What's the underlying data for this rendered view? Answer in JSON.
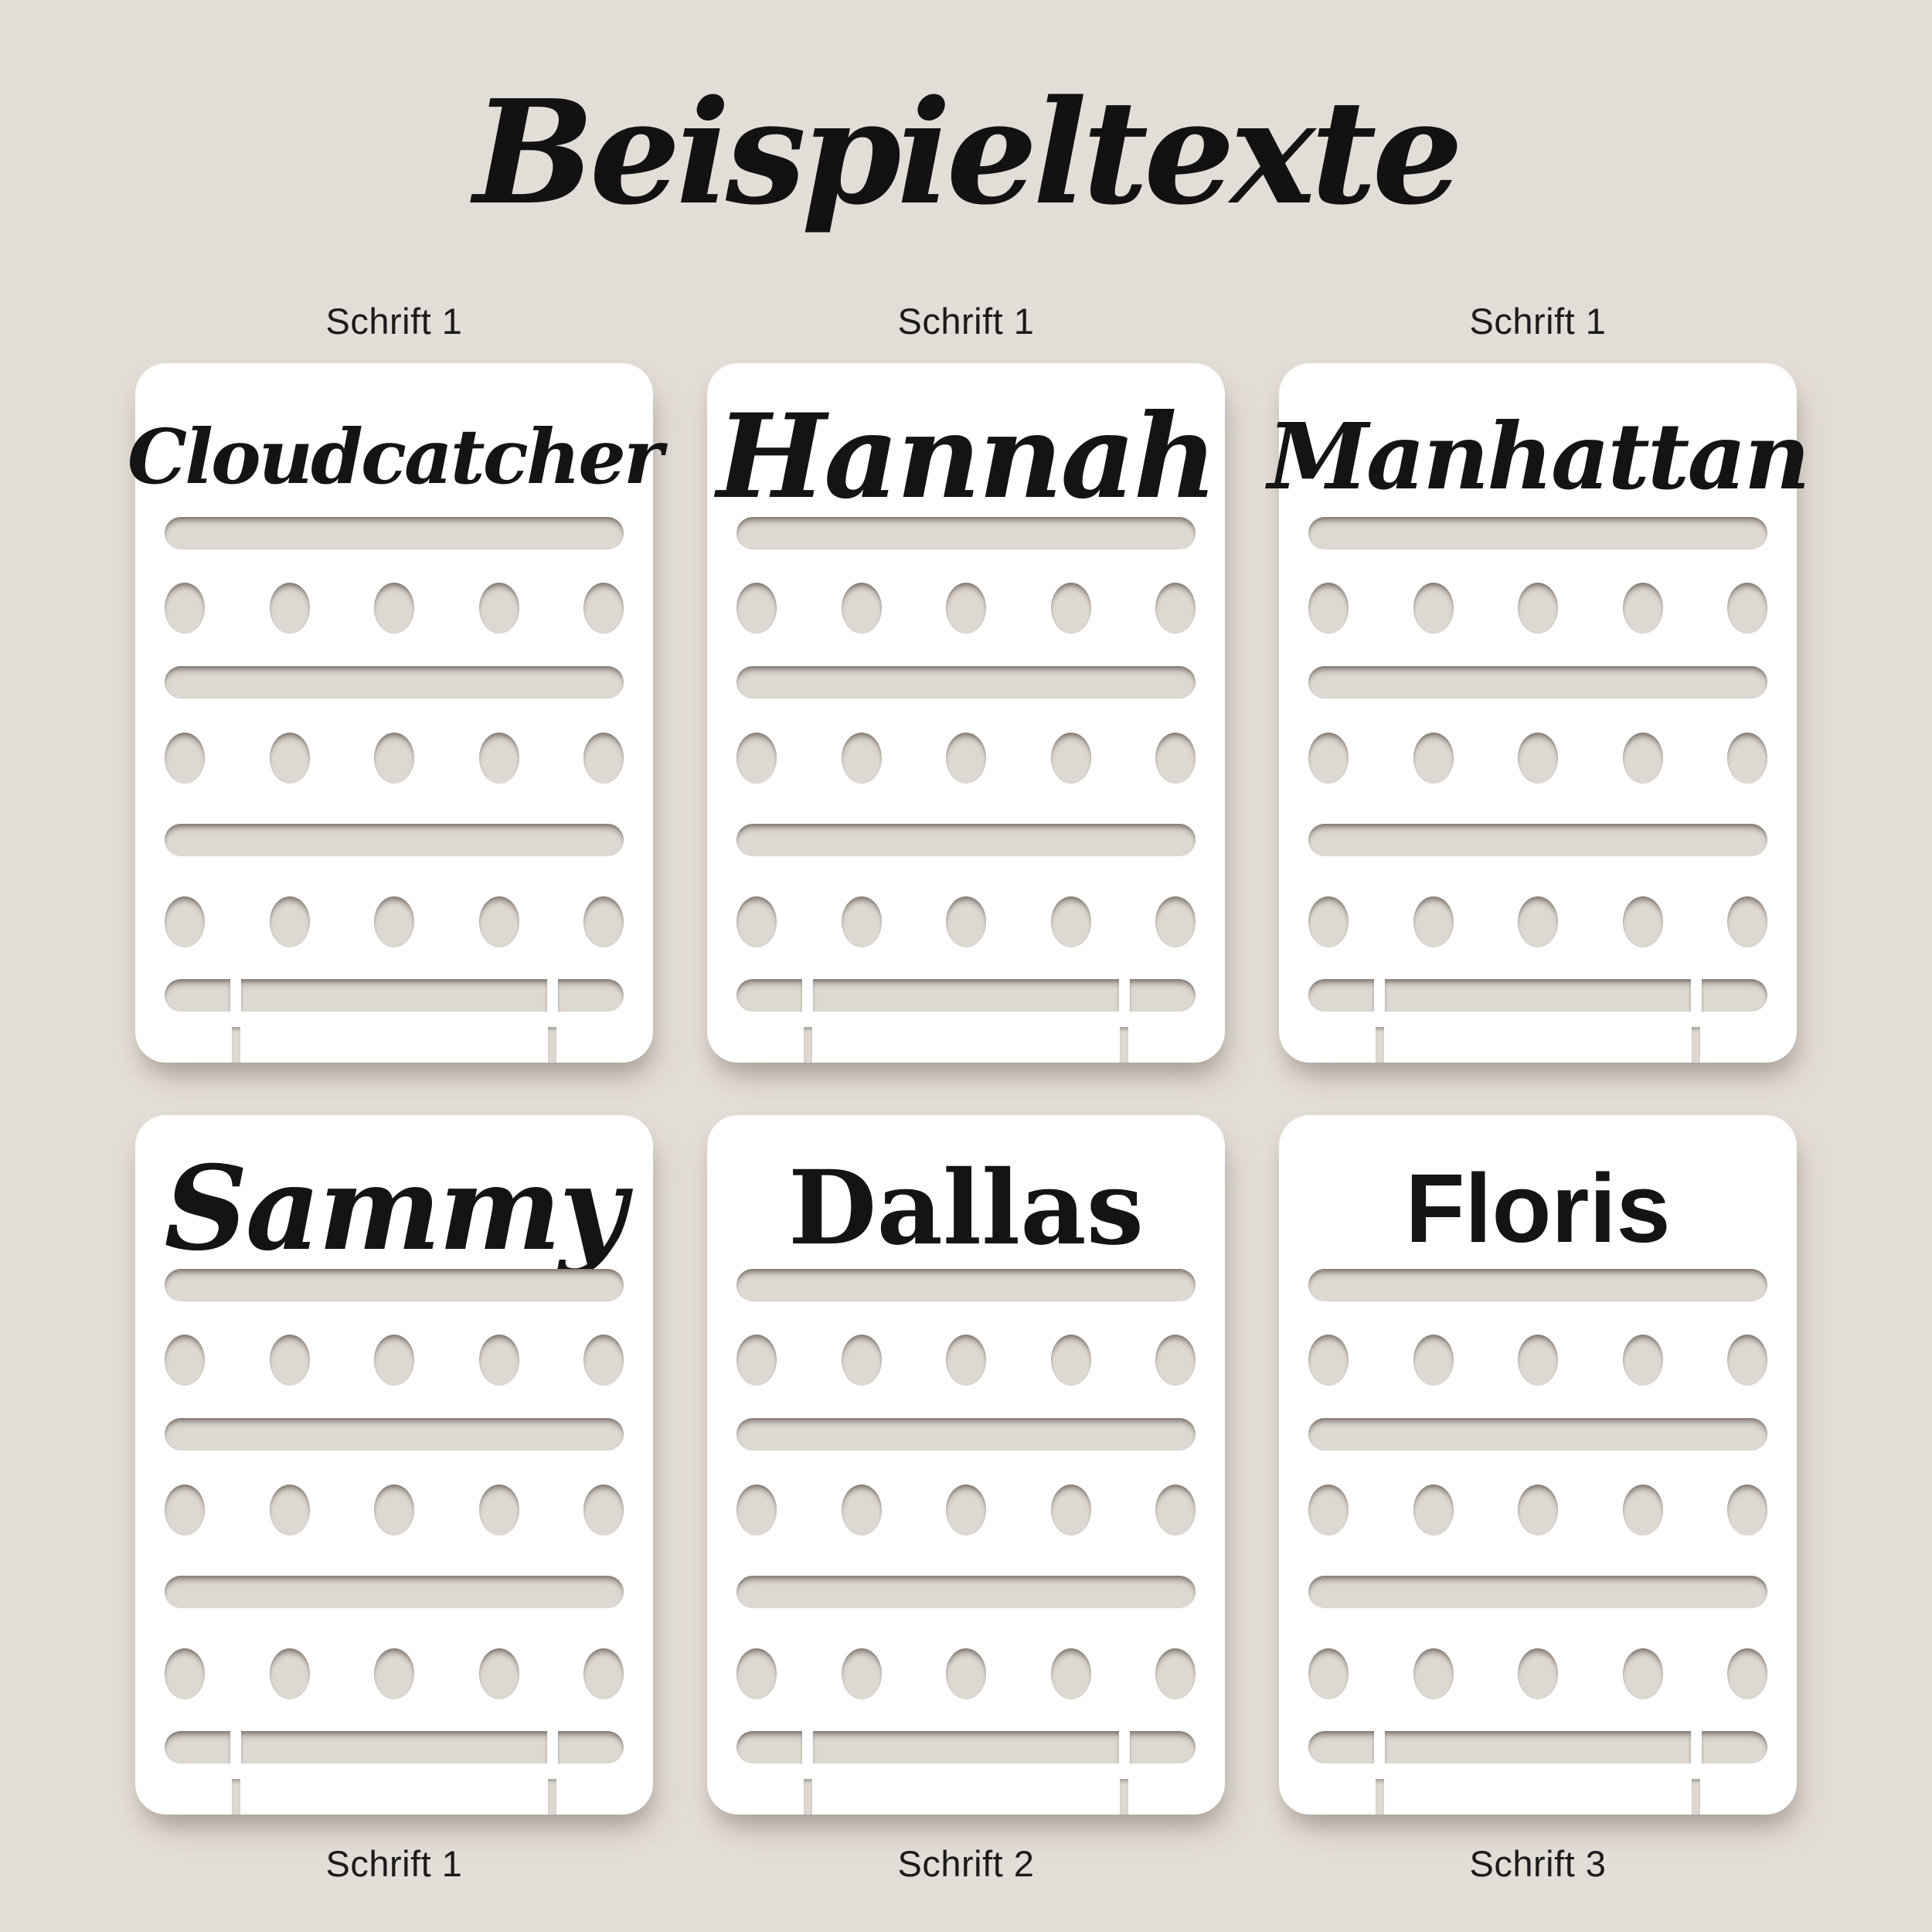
{
  "page": {
    "title": "Beispieltexte",
    "language": "German",
    "colors": {
      "background": "#e3ddd7",
      "card": "#ffffff",
      "cutout": "#ded8d2",
      "text": "#141414"
    }
  },
  "cards": [
    {
      "label": "Schrift 1",
      "label_position": "top",
      "name": "Cloudcatcher",
      "font_style": "script"
    },
    {
      "label": "Schrift 1",
      "label_position": "top",
      "name": "Hannah",
      "font_style": "script"
    },
    {
      "label": "Schrift 1",
      "label_position": "top",
      "name": "Manhattan",
      "font_style": "script"
    },
    {
      "label": "Schrift 1",
      "label_position": "bottom",
      "name": "Sammy",
      "font_style": "script"
    },
    {
      "label": "Schrift 2",
      "label_position": "bottom",
      "name": "Dallas",
      "font_style": "serif"
    },
    {
      "label": "Schrift 3",
      "label_position": "bottom",
      "name": "Floris",
      "font_style": "sans"
    }
  ],
  "card_structure": {
    "slot_bars": 3,
    "hole_rows": 3,
    "holes_per_row": 5,
    "bottom_bar_segments": 3,
    "stand_leg_slots": 2
  }
}
